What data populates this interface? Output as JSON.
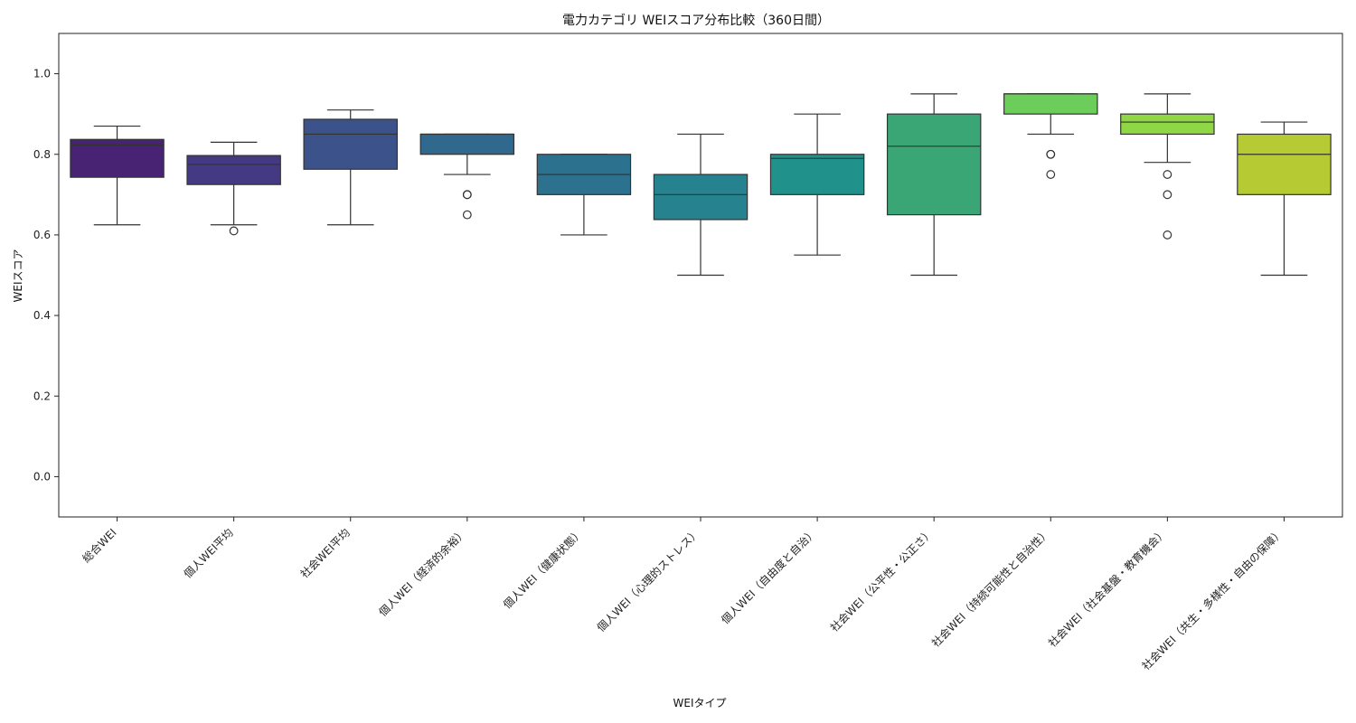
{
  "chart_data": {
    "type": "box",
    "title": "電力カテゴリ WEIスコア分布比較（360日間）",
    "xlabel": "WEIタイプ",
    "ylabel": "WEIスコア",
    "ylim": [
      -0.1,
      1.1
    ],
    "yticks": [
      "0.0",
      "0.2",
      "0.4",
      "0.6",
      "0.8",
      "1.0"
    ],
    "grid": false,
    "categories": [
      "総合WEI",
      "個人WEI平均",
      "社会WEI平均",
      "個人WEI（経済的余裕）",
      "個人WEI（健康状態）",
      "個人WEI（心理的ストレス）",
      "個人WEI（自由度と自治）",
      "社会WEI（公平性・公正さ）",
      "社会WEI（持続可能性と自治性）",
      "社会WEI（社会基盤・教育機会）",
      "社会WEI（共生・多様性・自由の保障）"
    ],
    "boxes": [
      {
        "whisker_low": 0.625,
        "q1": 0.743,
        "median": 0.823,
        "q3": 0.837,
        "whisker_high": 0.87,
        "outliers": [],
        "color": "#482373"
      },
      {
        "whisker_low": 0.625,
        "q1": 0.725,
        "median": 0.775,
        "q3": 0.797,
        "whisker_high": 0.83,
        "outliers": [
          0.61
        ],
        "color": "#443983"
      },
      {
        "whisker_low": 0.625,
        "q1": 0.763,
        "median": 0.85,
        "q3": 0.887,
        "whisker_high": 0.91,
        "outliers": [],
        "color": "#3b528b"
      },
      {
        "whisker_low": 0.75,
        "q1": 0.8,
        "median": 0.85,
        "q3": 0.85,
        "whisker_high": 0.85,
        "outliers": [
          0.7,
          0.7,
          0.65
        ],
        "color": "#31688e"
      },
      {
        "whisker_low": 0.6,
        "q1": 0.7,
        "median": 0.75,
        "q3": 0.8,
        "whisker_high": 0.8,
        "outliers": [],
        "color": "#2c728e"
      },
      {
        "whisker_low": 0.5,
        "q1": 0.638,
        "median": 0.7,
        "q3": 0.75,
        "whisker_high": 0.85,
        "outliers": [],
        "color": "#26828e"
      },
      {
        "whisker_low": 0.55,
        "q1": 0.7,
        "median": 0.79,
        "q3": 0.8,
        "whisker_high": 0.9,
        "outliers": [],
        "color": "#21918c"
      },
      {
        "whisker_low": 0.5,
        "q1": 0.65,
        "median": 0.82,
        "q3": 0.9,
        "whisker_high": 0.95,
        "outliers": [],
        "color": "#3aa676"
      },
      {
        "whisker_low": 0.85,
        "q1": 0.9,
        "median": 0.95,
        "q3": 0.95,
        "whisker_high": 0.95,
        "outliers": [
          0.8,
          0.8,
          0.75
        ],
        "color": "#6ccd5a"
      },
      {
        "whisker_low": 0.78,
        "q1": 0.85,
        "median": 0.88,
        "q3": 0.9,
        "whisker_high": 0.95,
        "outliers": [
          0.75,
          0.7,
          0.6
        ],
        "color": "#8fd744"
      },
      {
        "whisker_low": 0.5,
        "q1": 0.7,
        "median": 0.8,
        "q3": 0.85,
        "whisker_high": 0.88,
        "outliers": [],
        "color": "#b5ca33"
      }
    ]
  }
}
